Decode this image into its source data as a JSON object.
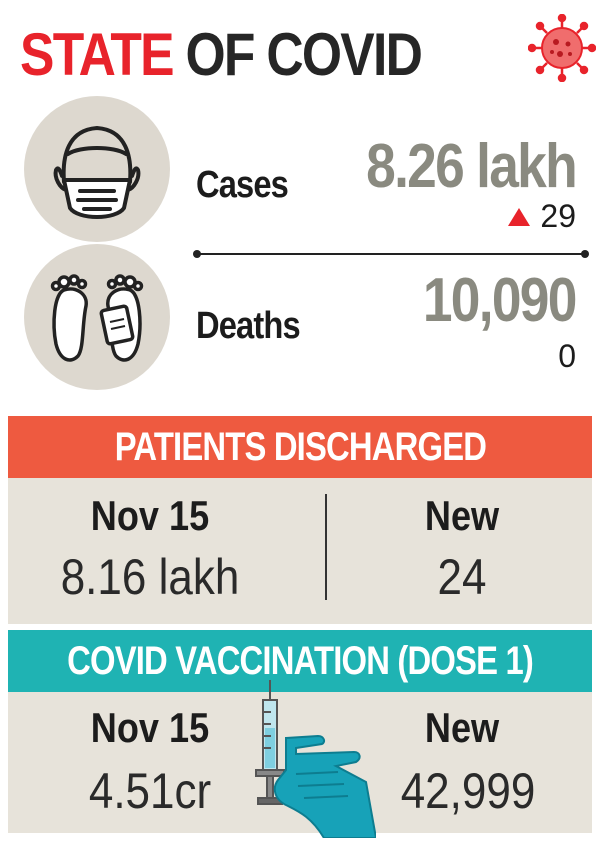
{
  "title": {
    "part1": "STATE",
    "part2": " OF COVID"
  },
  "icons": {
    "virus": "coronavirus-icon",
    "mask": "face-mask-icon",
    "feet": "feet-with-toe-tag-icon",
    "syringe": "vaccine-syringe-icon"
  },
  "cases": {
    "label": "Cases",
    "value": "8.26 lakh",
    "delta": "29",
    "trend": "up"
  },
  "deaths": {
    "label": "Deaths",
    "value": "10,090",
    "delta": "0"
  },
  "discharged": {
    "heading": "PATIENTS DISCHARGED",
    "left_label": "Nov 15",
    "left_value": "8.16 lakh",
    "right_label": "New",
    "right_value": "24"
  },
  "vaccination": {
    "heading": "COVID VACCINATION (DOSE 1)",
    "left_label": "Nov 15",
    "left_value": "4.51cr",
    "right_label": "New",
    "right_value": "42,999"
  },
  "colors": {
    "accent_red": "#e8232b",
    "banner_orange": "#ee5a40",
    "banner_teal": "#1fb3b3",
    "panel_beige": "#e7e3da",
    "icon_circle": "#ddd8cf",
    "value_gray": "#8a8a80"
  }
}
